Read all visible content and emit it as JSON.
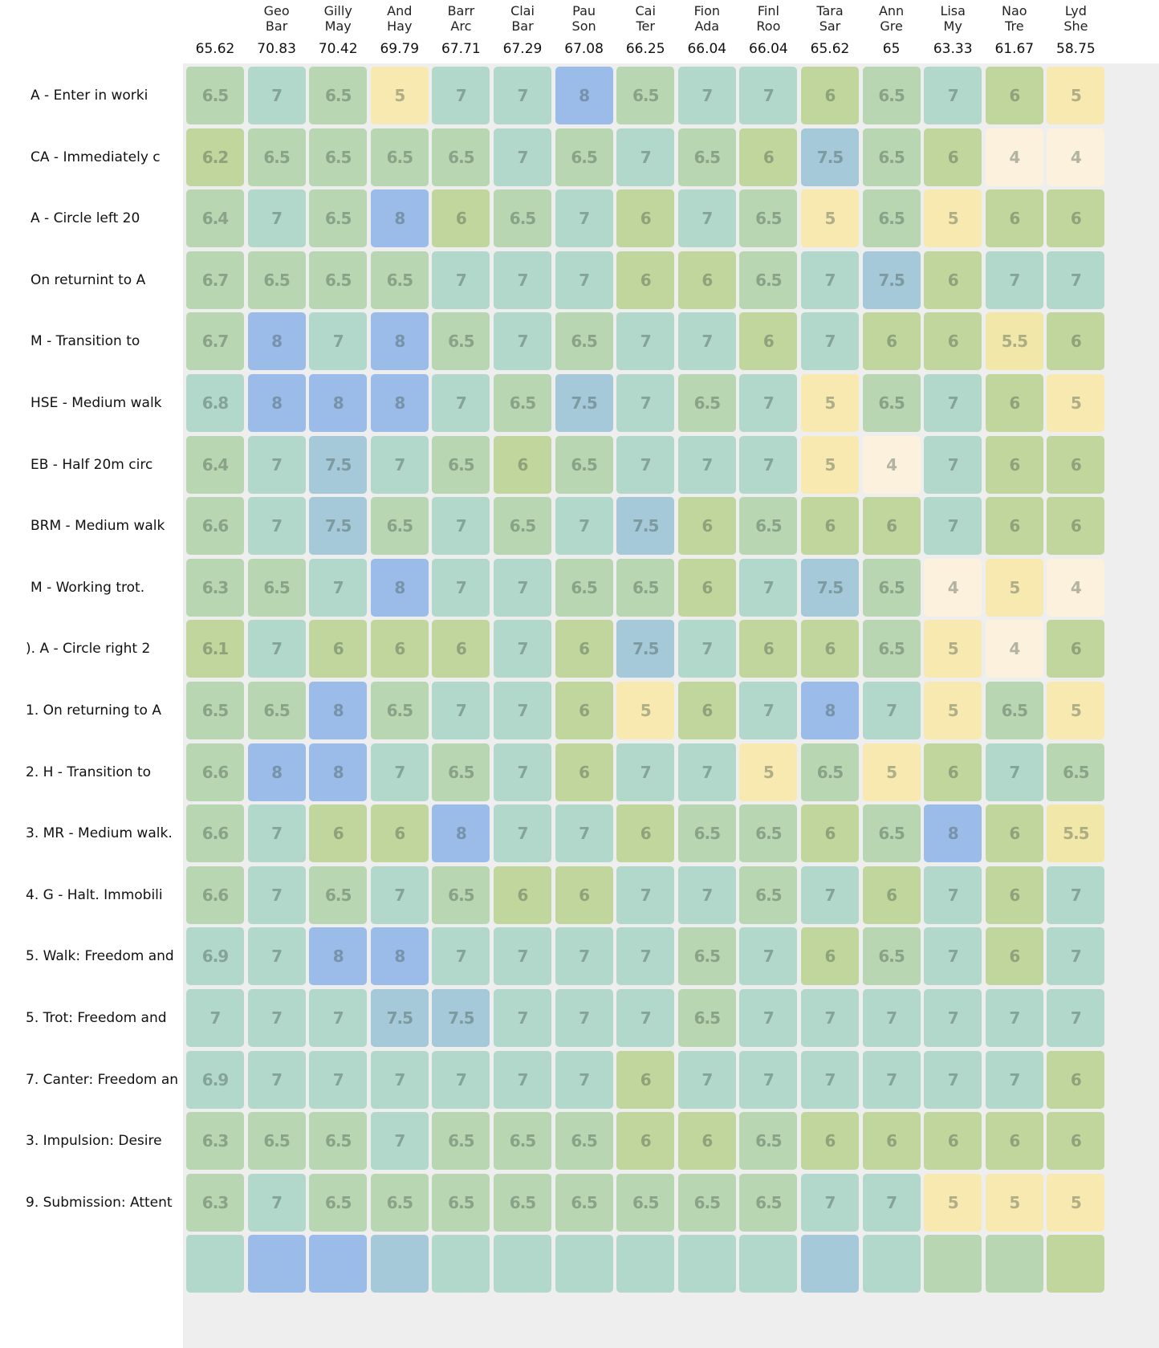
{
  "chart_data": {
    "type": "heatmap",
    "columns": [
      {
        "name": "",
        "total": "65.62"
      },
      {
        "name": [
          "Geo",
          "Bar"
        ],
        "total": "70.83"
      },
      {
        "name": [
          "Gilly",
          "May"
        ],
        "total": "70.42"
      },
      {
        "name": [
          "And",
          "Hay"
        ],
        "total": "69.79"
      },
      {
        "name": [
          "Barr",
          "Arc"
        ],
        "total": "67.71"
      },
      {
        "name": [
          "Clai",
          "Bar"
        ],
        "total": "67.29"
      },
      {
        "name": [
          "Pau",
          "Son"
        ],
        "total": "67.08"
      },
      {
        "name": [
          "Cai",
          "Ter"
        ],
        "total": "66.25"
      },
      {
        "name": [
          "Fion",
          "Ada"
        ],
        "total": "66.04"
      },
      {
        "name": [
          "Finl",
          "Roo"
        ],
        "total": "66.04"
      },
      {
        "name": [
          "Tara",
          "Sar"
        ],
        "total": "65.62"
      },
      {
        "name": [
          "Ann",
          "Gre"
        ],
        "total": "65"
      },
      {
        "name": [
          "Lisa",
          "My"
        ],
        "total": "63.33"
      },
      {
        "name": [
          "Nao",
          "Tre"
        ],
        "total": "61.67"
      },
      {
        "name": [
          "Lyd",
          "She"
        ],
        "total": "58.75"
      }
    ],
    "rows": [
      {
        "label": "A - Enter in worki",
        "values": [
          6.5,
          7,
          6.5,
          5,
          7,
          7,
          8,
          6.5,
          7,
          7,
          6,
          6.5,
          7,
          6,
          5
        ]
      },
      {
        "label": "CA - Immediately c",
        "values": [
          6.2,
          6.5,
          6.5,
          6.5,
          6.5,
          7,
          6.5,
          7,
          6.5,
          6,
          7.5,
          6.5,
          6,
          4,
          4
        ]
      },
      {
        "label": "A - Circle left 20",
        "values": [
          6.4,
          7,
          6.5,
          8,
          6,
          6.5,
          7,
          6,
          7,
          6.5,
          5,
          6.5,
          5,
          6,
          6
        ]
      },
      {
        "label": "On returnint to A",
        "values": [
          6.7,
          6.5,
          6.5,
          6.5,
          7,
          7,
          7,
          6,
          6,
          6.5,
          7,
          7.5,
          6,
          7,
          7
        ]
      },
      {
        "label": "M - Transition to",
        "values": [
          6.7,
          8,
          7,
          8,
          6.5,
          7,
          6.5,
          7,
          7,
          6,
          7,
          6,
          6,
          5.5,
          6
        ]
      },
      {
        "label": "HSE - Medium walk",
        "values": [
          6.8,
          8,
          8,
          8,
          7,
          6.5,
          7.5,
          7,
          6.5,
          7,
          5,
          6.5,
          7,
          6,
          5
        ]
      },
      {
        "label": "EB - Half 20m circ",
        "values": [
          6.4,
          7,
          7.5,
          7,
          6.5,
          6,
          6.5,
          7,
          7,
          7,
          5,
          4,
          7,
          6,
          6
        ]
      },
      {
        "label": "BRM - Medium walk",
        "values": [
          6.6,
          7,
          7.5,
          6.5,
          7,
          6.5,
          7,
          7.5,
          6,
          6.5,
          6,
          6,
          7,
          6,
          6
        ]
      },
      {
        "label": "M - Working trot.",
        "values": [
          6.3,
          6.5,
          7,
          8,
          7,
          7,
          6.5,
          6.5,
          6,
          7,
          7.5,
          6.5,
          4,
          5,
          4
        ]
      },
      {
        "label": "). A - Circle right 2",
        "values": [
          6.1,
          7,
          6,
          6,
          6,
          7,
          6,
          7.5,
          7,
          6,
          6,
          6.5,
          5,
          4,
          6
        ]
      },
      {
        "label": "1. On returning to A",
        "values": [
          6.5,
          6.5,
          8,
          6.5,
          7,
          7,
          6,
          5,
          6,
          7,
          8,
          7,
          5,
          6.5,
          5
        ]
      },
      {
        "label": "2. H - Transition to",
        "values": [
          6.6,
          8,
          8,
          7,
          6.5,
          7,
          6,
          7,
          7,
          5,
          6.5,
          5,
          6,
          7,
          6.5
        ]
      },
      {
        "label": "3. MR - Medium walk.",
        "values": [
          6.6,
          7,
          6,
          6,
          8,
          7,
          7,
          6,
          6.5,
          6.5,
          6,
          6.5,
          8,
          6,
          5.5
        ]
      },
      {
        "label": "4. G - Halt. Immobili",
        "values": [
          6.6,
          7,
          6.5,
          7,
          6.5,
          6,
          6,
          7,
          7,
          6.5,
          7,
          6,
          7,
          6,
          7
        ]
      },
      {
        "label": "5. Walk: Freedom and",
        "values": [
          6.9,
          7,
          8,
          8,
          7,
          7,
          7,
          7,
          6.5,
          7,
          6,
          6.5,
          7,
          6,
          7
        ]
      },
      {
        "label": "5. Trot: Freedom and",
        "values": [
          7,
          7,
          7,
          7.5,
          7.5,
          7,
          7,
          7,
          6.5,
          7,
          7,
          7,
          7,
          7,
          7
        ]
      },
      {
        "label": "7. Canter: Freedom an",
        "values": [
          6.9,
          7,
          7,
          7,
          7,
          7,
          7,
          6,
          7,
          7,
          7,
          7,
          7,
          7,
          6
        ]
      },
      {
        "label": "3. Impulsion: Desire",
        "values": [
          6.3,
          6.5,
          6.5,
          7,
          6.5,
          6.5,
          6.5,
          6,
          6,
          6.5,
          6,
          6,
          6,
          6,
          6
        ]
      },
      {
        "label": "9. Submission: Attent",
        "values": [
          6.3,
          7,
          6.5,
          6.5,
          6.5,
          6.5,
          6.5,
          6.5,
          6.5,
          6.5,
          7,
          7,
          5,
          5,
          5
        ]
      }
    ],
    "partial_row_levels": [
      7,
      8,
      8,
      7.5,
      7,
      7,
      7,
      7,
      7,
      7,
      7.5,
      7,
      6.5,
      6.5,
      6
    ],
    "color_scale": {
      "4": "#fbf1dc",
      "5": "#f7e9b0",
      "5.5": "#f1e7a8",
      "6": "#c1d69c",
      "6.5": "#b8d6b1",
      "7": "#b2d8cc",
      "7.5": "#a6c9d9",
      "8": "#9bbce8"
    }
  }
}
